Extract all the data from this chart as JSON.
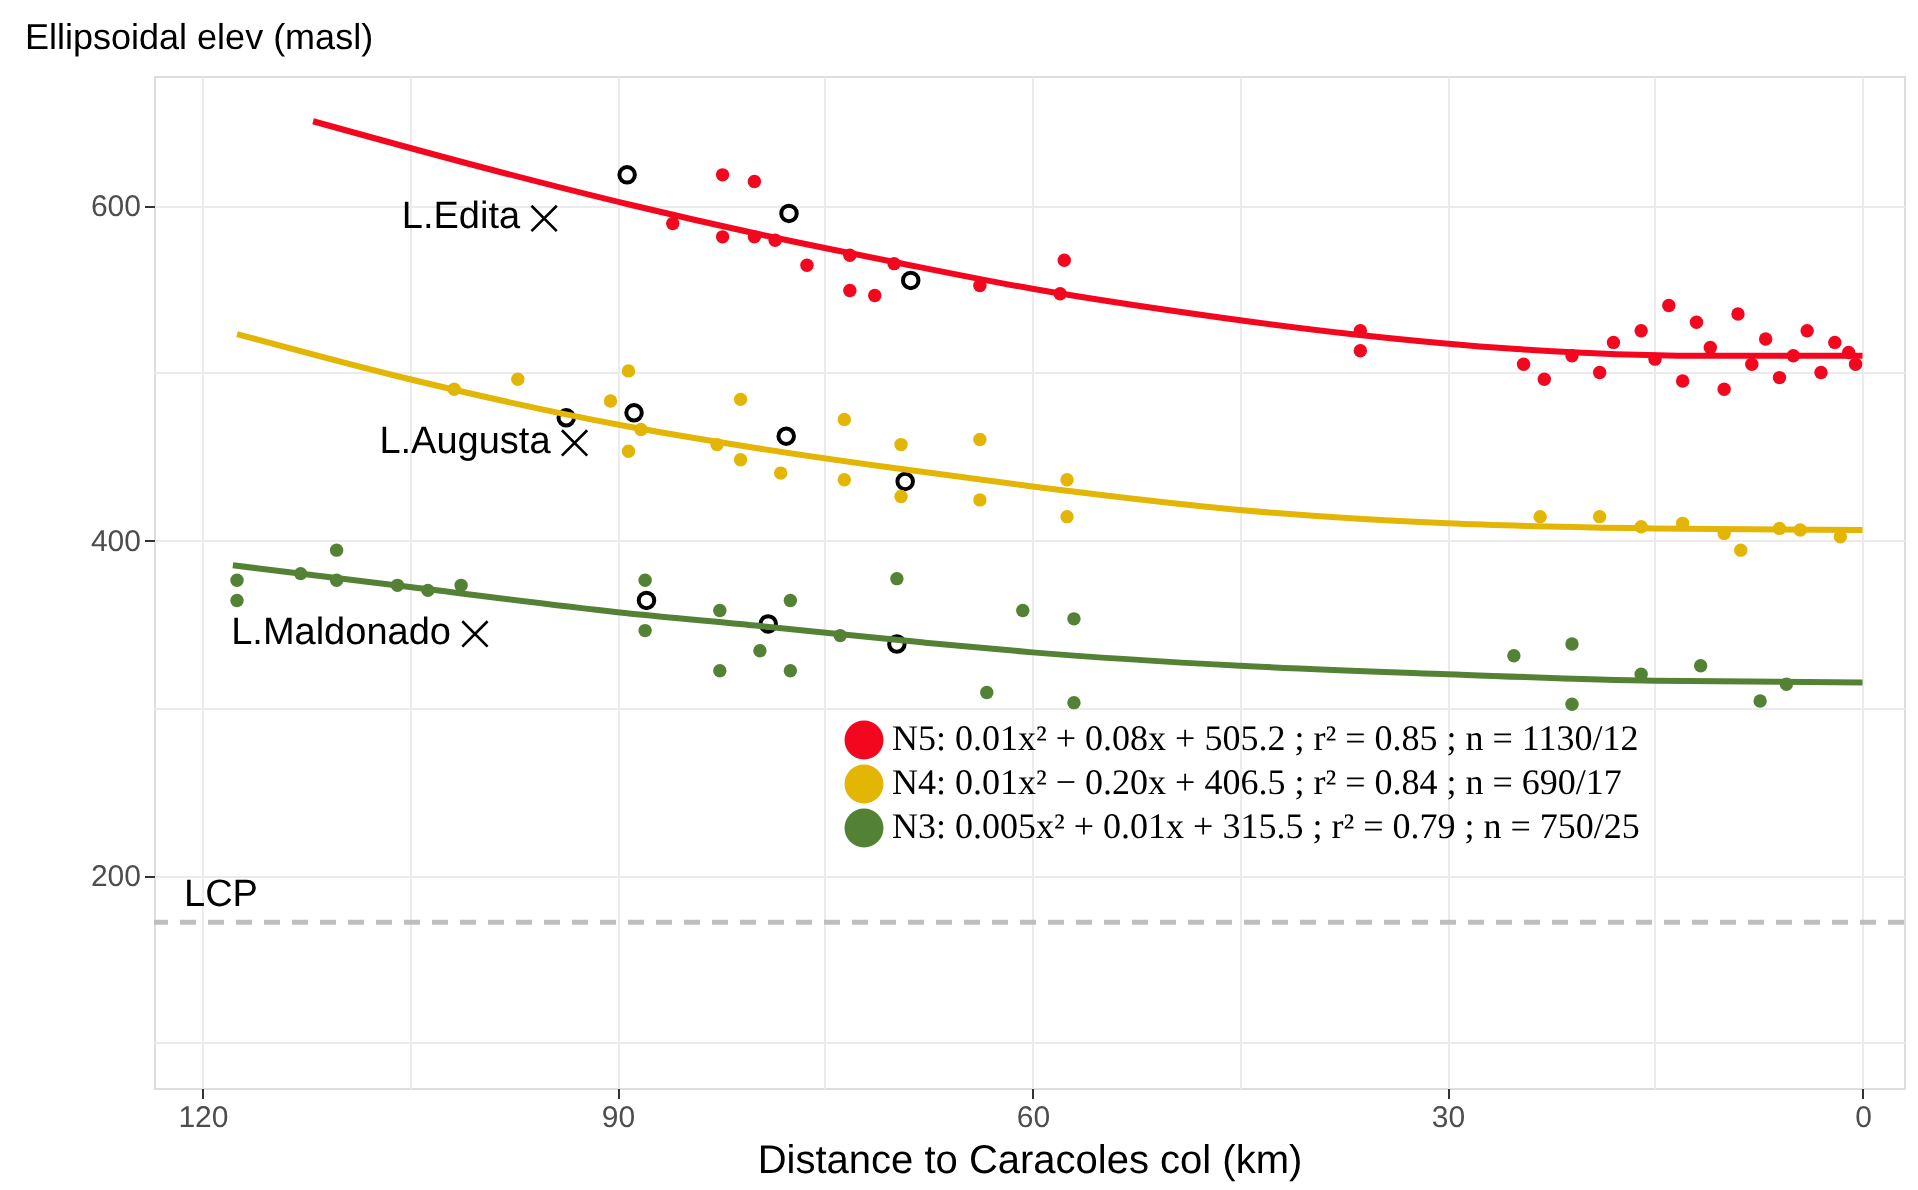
{
  "chart_data": {
    "type": "scatter",
    "xlabel": "Distance to Caracoles col (km)",
    "ylabel": "Ellipsoidal elev (masl)",
    "xlim": [
      123.5,
      -3
    ],
    "ylim": [
      73,
      677
    ],
    "xticks": [
      120,
      {
        "value": 105,
        "label": null
      },
      90,
      {
        "value": 75,
        "label": null
      },
      60,
      {
        "value": 45,
        "label": null
      },
      30,
      {
        "value": 15,
        "label": null
      },
      0
    ],
    "yticks": [
      {
        "value": 100,
        "label": null
      },
      200,
      {
        "value": 300,
        "label": null
      },
      400,
      {
        "value": 500,
        "label": null
      },
      600
    ],
    "grid": true,
    "legend": "bottom right",
    "marker": "circle",
    "series": [
      {
        "name": "N5: 0.01x² + 0.08x + 505.2 ;  r² = 0.85 ; n = 1130/12",
        "color": "#f2071f",
        "x": [
          86.0,
          82.4,
          82.4,
          80.1,
          80.1,
          78.6,
          76.3,
          73.2,
          73.2,
          71.4,
          70.0,
          63.8,
          58.0,
          57.7,
          36.3,
          36.3,
          24.5,
          23,
          21,
          19,
          18,
          16,
          15,
          14,
          13,
          12,
          11,
          10,
          9,
          8,
          7,
          6,
          5,
          4,
          3,
          2,
          1,
          0.5
        ],
        "values": [
          589,
          618,
          581,
          614,
          581,
          579,
          564,
          570,
          549,
          546,
          565,
          552,
          547,
          567,
          525,
          513,
          505,
          496,
          510,
          500,
          518,
          525,
          508,
          540,
          495,
          530,
          515,
          490,
          535,
          505,
          520,
          497,
          510,
          525,
          500,
          518,
          512,
          505
        ]
      },
      {
        "name": "N4: 0.01x² − 0.20x + 406.5 ;  r² = 0.84 ; n = 690/17",
        "color": "#e3b505",
        "x": [
          101.8,
          97.2,
          89.2,
          89.2,
          90.5,
          88.3,
          82.8,
          81.1,
          81.1,
          78.2,
          73.6,
          73.6,
          69.5,
          69.5,
          63.8,
          63.8,
          57.5,
          57.5,
          23.3,
          19,
          16,
          13,
          10,
          8.8,
          6,
          4.5,
          1.6
        ],
        "values": [
          490,
          496,
          501,
          453,
          483,
          466,
          457,
          484,
          448,
          440,
          472,
          436,
          457,
          426,
          460,
          424,
          436,
          414,
          414,
          414,
          408,
          410,
          404,
          394,
          407,
          406,
          402
        ]
      },
      {
        "name": "N3: 0.005x² + 0.01x + 315.5 ;  r² = 0.79 ; n = 750/25",
        "color": "#548235",
        "x": [
          117.5,
          117.5,
          112.9,
          110.3,
          110.3,
          105.9,
          103.7,
          101.3,
          88.0,
          88.0,
          82.6,
          82.6,
          79.7,
          77.5,
          77.5,
          73.9,
          69.8,
          63.3,
          60.7,
          57.0,
          57.0,
          25.2,
          21.0,
          21.0,
          16.0,
          11.7,
          7.4,
          5.5
        ],
        "values": [
          376,
          364,
          380,
          394,
          376,
          373,
          370,
          373,
          376,
          346,
          358,
          322,
          334,
          364,
          322,
          343,
          377,
          309,
          358,
          303,
          353,
          331,
          302,
          338,
          320,
          325,
          304,
          314
        ]
      },
      {
        "color": "#000000",
        "x": [
          89.3,
          77.6,
          68.8,
          93.7,
          88.8,
          77.8,
          69.2,
          87.9,
          79.1,
          69.8
        ],
        "values": [
          618,
          595,
          555,
          473,
          476,
          462,
          435,
          364,
          350,
          338
        ]
      },
      {
        "type": "line",
        "marker": "none",
        "line_style": "solid",
        "color": "#f2071f",
        "x": [
          112,
          100,
          89,
          80,
          70,
          60,
          50,
          37,
          25,
          12,
          0
        ],
        "values": [
          650,
          623,
          600,
          583,
          566,
          550,
          537,
          523,
          514,
          510,
          510
        ]
      },
      {
        "type": "line",
        "marker": "none",
        "line_style": "solid",
        "color": "#e3b505",
        "x": [
          117.5,
          105,
          90,
          80,
          70,
          60,
          45,
          30,
          15,
          0
        ],
        "values": [
          523,
          496,
          469,
          455,
          443,
          432,
          418,
          410,
          407,
          406
        ]
      },
      {
        "type": "line",
        "marker": "none",
        "line_style": "solid",
        "color": "#548235",
        "x": [
          117.8,
          105,
          90,
          80,
          68,
          60,
          45,
          30,
          15,
          0
        ],
        "values": [
          385,
          372,
          357,
          349,
          339,
          333,
          325,
          320,
          316,
          315
        ]
      },
      {
        "marker": "cross",
        "color": "#000000",
        "x": [
          95.3,
          93.1,
          100.3
        ],
        "values": [
          592,
          458,
          344
        ]
      }
    ],
    "annotations": [
      {
        "text": "L.Edita",
        "x": 95.3,
        "y": 592
      },
      {
        "text": "L.Augusta",
        "x": 93.1,
        "y": 458
      },
      {
        "text": "L.Maldonado",
        "x": 100.3,
        "y": 344
      }
    ],
    "ref_lines": [
      {
        "axis": "y",
        "value": 172,
        "label": "LCP",
        "color": "#bebebe",
        "line_style": "dashed"
      }
    ]
  }
}
